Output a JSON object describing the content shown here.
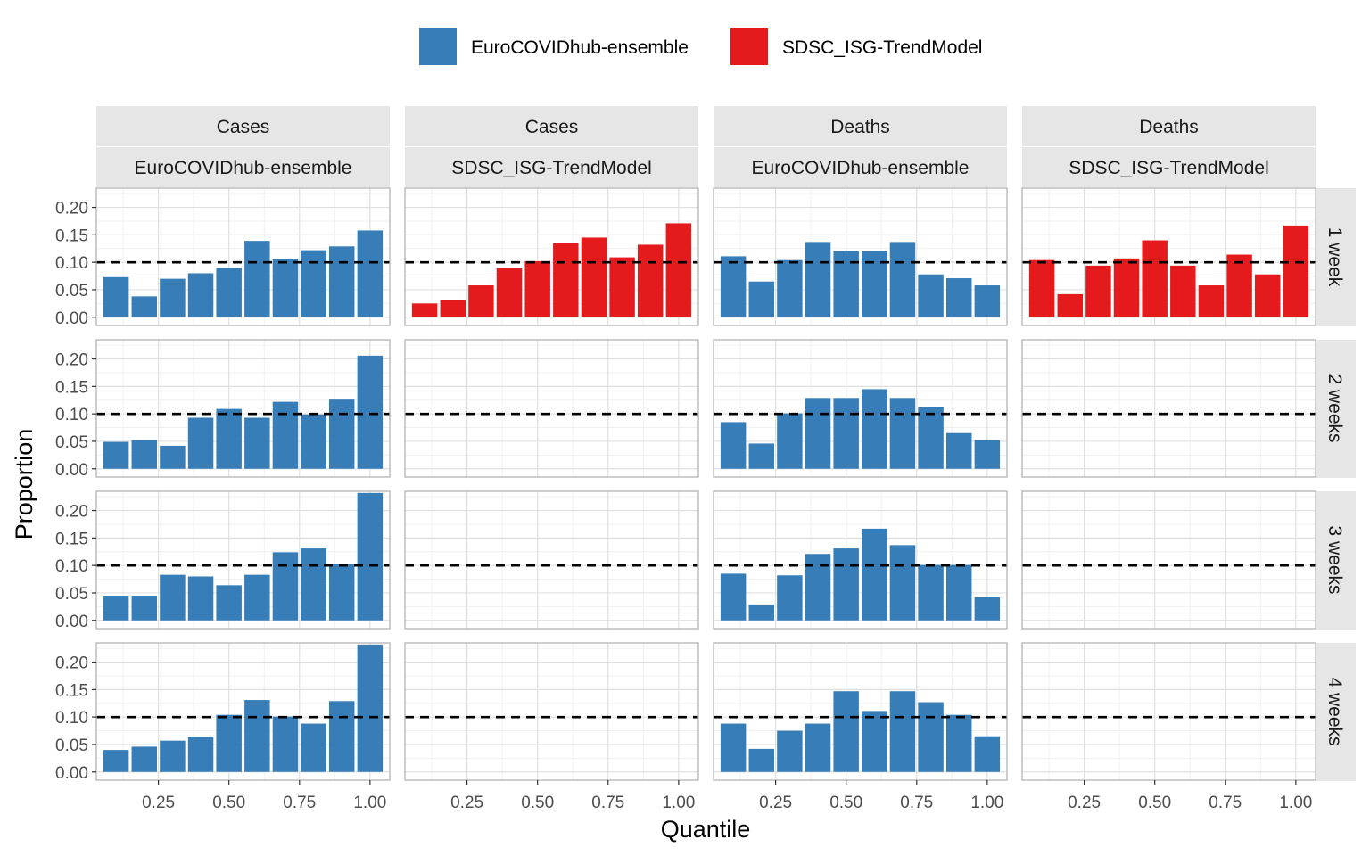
{
  "chart_data": {
    "type": "bar",
    "facet_layout": "grid",
    "xlabel": "Quantile",
    "ylabel": "Proportion",
    "ylim": [
      -0.015,
      0.235
    ],
    "xlim": [
      0.03,
      1.07
    ],
    "x_ticks": [
      0.25,
      0.5,
      0.75,
      1.0
    ],
    "x_tick_labels": [
      "0.25",
      "0.50",
      "0.75",
      "1.00"
    ],
    "y_ticks": [
      0.0,
      0.05,
      0.1,
      0.15,
      0.2
    ],
    "y_tick_labels": [
      "0.00",
      "0.05",
      "0.10",
      "0.15",
      "0.20"
    ],
    "reference_line": {
      "y": 0.1,
      "style": "dashed",
      "color": "#000000"
    },
    "grid": true,
    "legend": {
      "position": "top",
      "items": [
        {
          "name": "EuroCOVIDhub-ensemble",
          "color": "#377EB8"
        },
        {
          "name": "SDSC_ISG-TrendModel",
          "color": "#E41A1C"
        }
      ]
    },
    "x": [
      0.1,
      0.2,
      0.3,
      0.4,
      0.5,
      0.6,
      0.7,
      0.8,
      0.9,
      1.0
    ],
    "columns": [
      {
        "target": "Cases",
        "model": "EuroCOVIDhub-ensemble",
        "color": "#377EB8"
      },
      {
        "target": "Cases",
        "model": "SDSC_ISG-TrendModel",
        "color": "#E41A1C"
      },
      {
        "target": "Deaths",
        "model": "EuroCOVIDhub-ensemble",
        "color": "#377EB8"
      },
      {
        "target": "Deaths",
        "model": "SDSC_ISG-TrendModel",
        "color": "#E41A1C"
      }
    ],
    "rows": [
      {
        "horizon": "1 week"
      },
      {
        "horizon": "2 weeks"
      },
      {
        "horizon": "3 weeks"
      },
      {
        "horizon": "4 weeks"
      }
    ],
    "panels": [
      [
        [
          0.073,
          0.038,
          0.07,
          0.08,
          0.09,
          0.139,
          0.106,
          0.122,
          0.129,
          0.158
        ],
        [
          0.025,
          0.032,
          0.058,
          0.089,
          0.102,
          0.135,
          0.145,
          0.109,
          0.132,
          0.171
        ],
        [
          0.111,
          0.065,
          0.104,
          0.137,
          0.12,
          0.12,
          0.137,
          0.078,
          0.071,
          0.058
        ],
        [
          0.104,
          0.042,
          0.094,
          0.107,
          0.14,
          0.094,
          0.058,
          0.114,
          0.078,
          0.167
        ]
      ],
      [
        [
          0.049,
          0.052,
          0.042,
          0.093,
          0.109,
          0.093,
          0.122,
          0.099,
          0.126,
          0.206
        ],
        [],
        [
          0.085,
          0.046,
          0.101,
          0.129,
          0.129,
          0.145,
          0.129,
          0.113,
          0.065,
          0.052
        ],
        []
      ],
      [
        [
          0.045,
          0.045,
          0.083,
          0.08,
          0.064,
          0.083,
          0.124,
          0.131,
          0.103,
          0.232
        ],
        [],
        [
          0.085,
          0.029,
          0.082,
          0.121,
          0.131,
          0.167,
          0.137,
          0.101,
          0.101,
          0.042
        ],
        []
      ],
      [
        [
          0.04,
          0.046,
          0.057,
          0.064,
          0.104,
          0.131,
          0.101,
          0.088,
          0.129,
          0.232
        ],
        [],
        [
          0.088,
          0.042,
          0.075,
          0.088,
          0.147,
          0.111,
          0.147,
          0.127,
          0.104,
          0.065
        ],
        []
      ]
    ]
  }
}
